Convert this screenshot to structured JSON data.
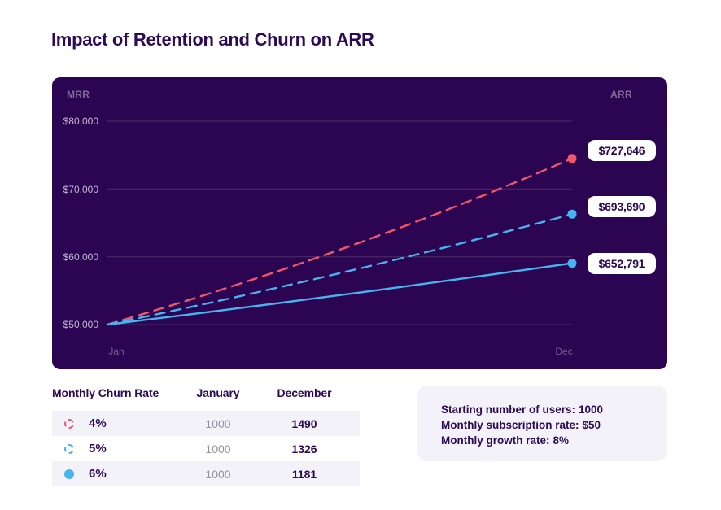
{
  "page": {
    "title": "Impact of Retention and Churn on ARR"
  },
  "chart": {
    "left_axis_label": "MRR",
    "right_axis_label": "ARR",
    "y_tick_labels": [
      "$80,000",
      "$70,000",
      "$60,000",
      "$50,000"
    ],
    "x_tick_labels": [
      "Jan",
      "Dec"
    ],
    "value_labels": [
      "$727,646",
      "$693,690",
      "$652,791"
    ]
  },
  "chart_data": {
    "type": "line",
    "title": "Impact of Retention and Churn on ARR",
    "ylabel": "MRR",
    "secondary_ylabel": "ARR",
    "ylim": [
      50000,
      80000
    ],
    "y_ticks": [
      80000,
      70000,
      60000,
      50000
    ],
    "y_tick_labels": [
      "$80,000",
      "$70,000",
      "$60,000",
      "$50,000"
    ],
    "x_visible_ticks": [
      "Jan",
      "Dec"
    ],
    "grid": true,
    "series": [
      {
        "name": "4% monthly churn",
        "color": "#f2566b",
        "dashed": true,
        "arr_december_label": "$727,646",
        "users_january": 1000,
        "users_december": 1490,
        "mrr_by_month": [
          50000,
          51846,
          53760,
          55745,
          57803,
          59938,
          62151,
          64446,
          66825,
          69293,
          71851,
          74500
        ]
      },
      {
        "name": "5% monthly churn",
        "color": "#45b4ef",
        "dashed": true,
        "arr_december_label": "$693,690",
        "users_january": 1000,
        "users_december": 1326,
        "mrr_by_month": [
          50000,
          51299,
          52632,
          54000,
          55403,
          56843,
          58320,
          59836,
          61390,
          62986,
          64622,
          66300
        ]
      },
      {
        "name": "6% monthly churn",
        "color": "#45b4ef",
        "dashed": false,
        "arr_december_label": "$652,791",
        "users_january": 1000,
        "users_december": 1181,
        "mrr_by_month": [
          50000,
          50763,
          51537,
          52323,
          53121,
          53932,
          54754,
          55590,
          56438,
          57298,
          58172,
          59050
        ]
      }
    ]
  },
  "table": {
    "headers": [
      "Monthly Churn Rate",
      "January",
      "December"
    ],
    "rows": [
      {
        "churn": "4%",
        "january": "1000",
        "december": "1490"
      },
      {
        "churn": "5%",
        "january": "1000",
        "december": "1326"
      },
      {
        "churn": "6%",
        "january": "1000",
        "december": "1181"
      }
    ]
  },
  "info_box": {
    "lines": [
      {
        "label": "Starting number of users:",
        "value": "1000"
      },
      {
        "label": "Monthly subscription rate:",
        "value": "$50"
      },
      {
        "label": "Monthly growth rate:",
        "value": "8%"
      }
    ]
  },
  "colors": {
    "chart_background": "#2b0551",
    "accent_red": "#f2566b",
    "accent_blue": "#45b4ef",
    "dark_text": "#2d0a56",
    "stripe_background": "#f2f2f8"
  }
}
